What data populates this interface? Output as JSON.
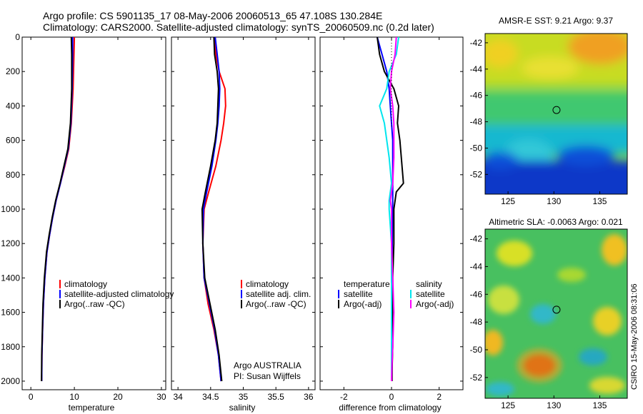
{
  "header": {
    "line1": "Argo profile: CS 5901135_17 08-May-2006 20060513_65 47.108S 130.284E",
    "line2": "Climatology: CARS2000. Satellite-adjusted climatology: synTS_20060509.nc (0.2d later)"
  },
  "colors": {
    "climatology": "#ff0000",
    "satellite": "#0000ff",
    "argo": "#000000",
    "sal_satellite": "#00e5ee",
    "sal_argo": "#ff00ff"
  },
  "chart_data": [
    {
      "type": "line",
      "name": "temperature-panel",
      "xlabel": "temperature",
      "xlim": [
        -2,
        31
      ],
      "ylim": [
        0,
        2050
      ],
      "xticks": [
        "0",
        "10",
        "20",
        "30"
      ],
      "xtick_values": [
        0,
        10,
        20,
        30
      ],
      "yticks": [
        "0",
        "200",
        "400",
        "600",
        "800",
        "1000",
        "1200",
        "1400",
        "1600",
        "1800",
        "2000"
      ],
      "ytick_values": [
        0,
        200,
        400,
        600,
        800,
        1000,
        1200,
        1400,
        1600,
        1800,
        2000
      ],
      "series": [
        {
          "name": "climatology",
          "color": "#ff0000",
          "x": [
            10.0,
            9.9,
            9.7,
            9.3,
            8.7,
            7.8,
            6.8,
            5.8,
            5.0,
            4.3,
            3.7,
            3.2,
            2.9,
            2.7,
            2.55,
            2.5
          ],
          "y": [
            0,
            100,
            300,
            500,
            650,
            750,
            850,
            950,
            1050,
            1150,
            1250,
            1400,
            1550,
            1700,
            1850,
            2000
          ]
        },
        {
          "name": "satellite-adjusted climatology",
          "color": "#0000ff",
          "x": [
            9.6,
            9.6,
            9.5,
            9.2,
            8.6,
            7.7,
            6.8,
            5.8,
            5.0,
            4.3,
            3.7,
            3.2,
            2.9,
            2.7,
            2.55,
            2.5
          ],
          "y": [
            0,
            100,
            300,
            500,
            650,
            750,
            850,
            950,
            1050,
            1150,
            1250,
            1400,
            1550,
            1700,
            1850,
            2000
          ]
        },
        {
          "name": "Argo(..raw -QC)",
          "color": "#000000",
          "x": [
            9.3,
            9.4,
            9.4,
            9.1,
            8.5,
            7.6,
            6.7,
            5.7,
            4.9,
            4.2,
            3.6,
            3.1,
            2.8,
            2.65,
            2.5,
            2.45
          ],
          "y": [
            0,
            100,
            300,
            500,
            650,
            750,
            850,
            950,
            1050,
            1150,
            1250,
            1400,
            1550,
            1700,
            1850,
            2000
          ]
        }
      ],
      "legend": [
        "climatology",
        "satellite-adjusted climatology",
        "Argo(..raw -QC)"
      ]
    },
    {
      "type": "line",
      "name": "salinity-panel",
      "xlabel": "salinity",
      "xlim": [
        33.9,
        36.1
      ],
      "ylim": [
        0,
        2050
      ],
      "xticks": [
        "34",
        "34.5",
        "35",
        "35.5",
        "36"
      ],
      "xtick_values": [
        34,
        34.5,
        35,
        35.5,
        36
      ],
      "series": [
        {
          "name": "climatology",
          "color": "#ff0000",
          "x": [
            34.57,
            34.58,
            34.63,
            34.72,
            34.73,
            34.7,
            34.66,
            34.58,
            34.47,
            34.4,
            34.38,
            34.4,
            34.46,
            34.55,
            34.62,
            34.66
          ],
          "y": [
            0,
            100,
            200,
            300,
            400,
            500,
            600,
            750,
            900,
            1000,
            1200,
            1400,
            1550,
            1700,
            1850,
            2000
          ]
        },
        {
          "name": "satellite adj. clim.",
          "color": "#0000ff",
          "x": [
            34.57,
            34.6,
            34.63,
            34.64,
            34.63,
            34.61,
            34.58,
            34.52,
            34.44,
            34.39,
            34.38,
            34.4,
            34.48,
            34.56,
            34.62,
            34.66
          ],
          "y": [
            0,
            100,
            200,
            300,
            400,
            500,
            600,
            750,
            900,
            1000,
            1200,
            1400,
            1550,
            1700,
            1850,
            2000
          ]
        },
        {
          "name": "Argo(..raw -QC)",
          "color": "#000000",
          "x": [
            34.55,
            34.56,
            34.6,
            34.62,
            34.61,
            34.6,
            34.57,
            34.5,
            34.42,
            34.37,
            34.38,
            34.41,
            34.49,
            34.57,
            34.63,
            34.67
          ],
          "y": [
            0,
            100,
            200,
            300,
            400,
            500,
            600,
            750,
            900,
            1000,
            1200,
            1400,
            1550,
            1700,
            1850,
            2000
          ]
        }
      ],
      "legend": [
        "climatology",
        "satellite adj. clim.",
        "Argo(..raw -QC)"
      ],
      "annotation": [
        "Argo AUSTRALIA",
        "PI: Susan Wijffels"
      ]
    },
    {
      "type": "line",
      "name": "difference-panel",
      "xlabel": "difference from climatology",
      "xlim": [
        -3,
        3
      ],
      "ylim": [
        0,
        2050
      ],
      "xticks": [
        "-2",
        "0",
        "2"
      ],
      "xtick_values": [
        -2,
        0,
        2
      ],
      "series": [
        {
          "name": "temperature satellite",
          "color": "#0000ff",
          "x": [
            -0.6,
            -0.4,
            -0.2,
            -0.1,
            -0.05,
            0.0,
            0.05,
            0.05,
            0.05,
            0.05,
            0.03,
            0.02,
            0.02,
            0.02,
            0.01,
            0.0
          ],
          "y": [
            0,
            100,
            200,
            300,
            400,
            500,
            600,
            800,
            900,
            1000,
            1200,
            1400,
            1600,
            1800,
            1900,
            2000
          ]
        },
        {
          "name": "temperature Argo(-adj)",
          "color": "#000000",
          "x": [
            -0.6,
            -0.5,
            -0.3,
            0.1,
            0.3,
            0.25,
            0.35,
            0.5,
            0.2,
            0.1,
            0.1,
            0.05,
            0.05,
            0.05,
            0.03,
            0.02
          ],
          "y": [
            0,
            100,
            200,
            300,
            400,
            500,
            600,
            850,
            900,
            1000,
            1200,
            1400,
            1600,
            1800,
            1900,
            2000
          ]
        },
        {
          "name": "salinity satellite",
          "color": "#00e5ee",
          "x": [
            0.3,
            0.2,
            -0.1,
            -0.2,
            -0.5,
            -0.3,
            -0.1,
            0.0,
            -0.1,
            -0.1,
            0.0,
            0.0,
            0.0,
            0.0,
            0.0,
            0.0
          ],
          "y": [
            0,
            100,
            200,
            300,
            400,
            500,
            700,
            850,
            950,
            1000,
            1200,
            1400,
            1600,
            1800,
            1900,
            2000
          ]
        },
        {
          "name": "salinity Argo(-adj)",
          "color": "#ff00ff",
          "x": [
            0.2,
            0.15,
            0.0,
            -0.05,
            0.05,
            0.1,
            0.1,
            0.05,
            -0.05,
            0.0,
            0.0,
            0.05,
            0.1,
            0.05,
            0.02,
            0.0
          ],
          "y": [
            0,
            100,
            200,
            300,
            400,
            500,
            700,
            850,
            950,
            1000,
            1200,
            1400,
            1600,
            1800,
            1900,
            2000
          ]
        }
      ],
      "legend_titles": [
        "temperature",
        "salinity"
      ],
      "legend": [
        "satellite",
        "Argo(-adj)",
        "satellite",
        "Argo(-adj)"
      ]
    },
    {
      "type": "heatmap",
      "name": "sst-map",
      "title": "AMSR-E SST: 9.21 Argo: 9.37",
      "xlim": [
        122.5,
        138
      ],
      "ylim": [
        -53.5,
        -41.3
      ],
      "xticks": [
        "125",
        "130",
        "135"
      ],
      "xtick_values": [
        125,
        130,
        135
      ],
      "yticks": [
        "-42",
        "-44",
        "-46",
        "-48",
        "-50",
        "-52"
      ],
      "ytick_values": [
        -42,
        -44,
        -46,
        -48,
        -50,
        -52
      ],
      "marker": [
        130.284,
        -47.108
      ]
    },
    {
      "type": "heatmap",
      "name": "sla-map",
      "title": "Altimetric SLA: -0.0063 Argo: 0.021",
      "xlim": [
        122.5,
        138
      ],
      "ylim": [
        -53.5,
        -41.3
      ],
      "xticks": [
        "125",
        "130",
        "135"
      ],
      "xtick_values": [
        125,
        130,
        135
      ],
      "yticks": [
        "-42",
        "-44",
        "-46",
        "-48",
        "-50",
        "-52"
      ],
      "ytick_values": [
        -42,
        -44,
        -46,
        -48,
        -50,
        -52
      ],
      "marker": [
        130.284,
        -47.108
      ]
    }
  ],
  "footer": {
    "stamp": "CSIRO 15-May-2006 08:31:06"
  }
}
